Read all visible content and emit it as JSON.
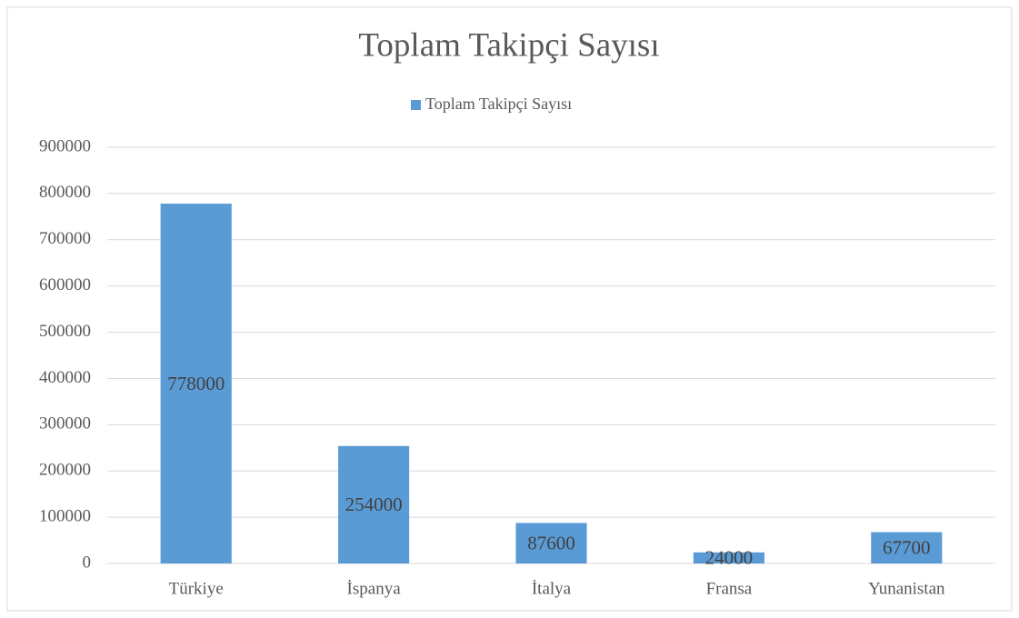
{
  "chart_data": {
    "type": "bar",
    "title": "Toplam Takipçi Sayısı",
    "categories": [
      "Türkiye",
      "İspanya",
      "İtalya",
      "Fransa",
      "Yunanistan"
    ],
    "series": [
      {
        "name": "Toplam Takipçi Sayısı",
        "color": "#5b9bd5",
        "values": [
          778000,
          254000,
          87600,
          24000,
          67700
        ]
      }
    ],
    "ylim": [
      0,
      900000
    ],
    "yticks": [
      0,
      100000,
      200000,
      300000,
      400000,
      500000,
      600000,
      700000,
      800000,
      900000
    ],
    "grid": true,
    "legend": "top"
  }
}
